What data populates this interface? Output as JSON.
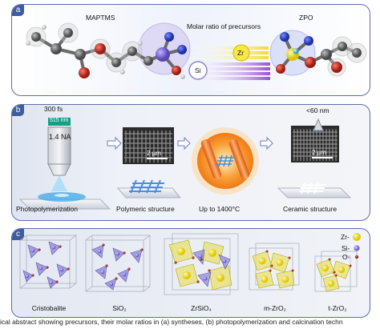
{
  "panel_a": {
    "tag": "a",
    "maptms_label": "MAPTMS",
    "center_title": "Molar ratio of precursors",
    "zr_label": "Zr",
    "si_label": "Si",
    "zpo_label": "ZPO"
  },
  "panel_b": {
    "tag": "b",
    "pulse_label": "300 fs",
    "wavelength_label": "515 nm",
    "na_label": "1.4 NA",
    "resolution_label": "<60 nm",
    "scalebar1": "2 µm",
    "scalebar2": "2 µm",
    "step1": "Photopolymerization",
    "step2": "Polymeric structure",
    "step3": "Up to 1400°C",
    "step4": "Ceramic structure"
  },
  "panel_c": {
    "tag": "c",
    "legend_zr": "Zr-",
    "legend_si": "Si-",
    "legend_o": "O-",
    "structures": [
      "Cristobalite",
      "SiO₂",
      "ZrSiO₄",
      "m-ZrO₂",
      "t-ZrO₂"
    ]
  },
  "caption": "ical abstract showing precursors, their molar ratios in (a) syntheses, (b) photopolymerization and calcination techn",
  "colors": {
    "frame": "#5b6fa8",
    "tag_bg": "#3f5c9c",
    "zr_yellow": "#f2e23a",
    "si_purple": "#8d7fd6",
    "o_red": "#a8322b",
    "furnace_orange": "#f28a1f"
  }
}
